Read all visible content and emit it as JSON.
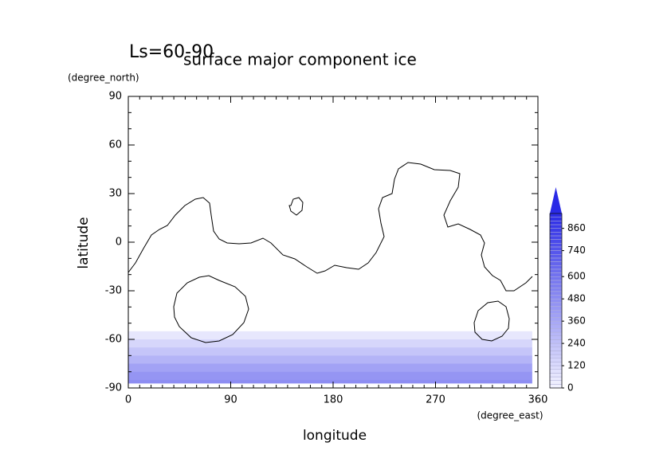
{
  "chart_data": {
    "type": "contour-map",
    "title": "surface major component ice",
    "subtitle": "Ls=60-90",
    "x_label": "longitude",
    "x_unit": "(degree_east)",
    "y_label": "latitude",
    "y_unit": "(degree_north)",
    "xlim": [
      0,
      360
    ],
    "xticks": [
      0,
      90,
      180,
      270,
      360
    ],
    "xminor": 10,
    "ylim": [
      -90,
      90
    ],
    "yticks": [
      -90,
      -60,
      -30,
      0,
      30,
      60,
      90
    ],
    "yminor": 10,
    "field": {
      "lon": [
        0,
        355
      ],
      "lat_edges": [
        -55,
        -60,
        -65,
        -70,
        -75,
        -80,
        -85,
        -87
      ],
      "values": [
        60,
        140,
        220,
        300,
        380,
        440,
        480
      ]
    },
    "colorbar": {
      "lim": [
        0,
        940
      ],
      "step": 20,
      "ticks": [
        0,
        120,
        240,
        360,
        480,
        600,
        740,
        860
      ],
      "colors": [
        "#f4f4ff",
        "#2a2ae6"
      ]
    }
  }
}
